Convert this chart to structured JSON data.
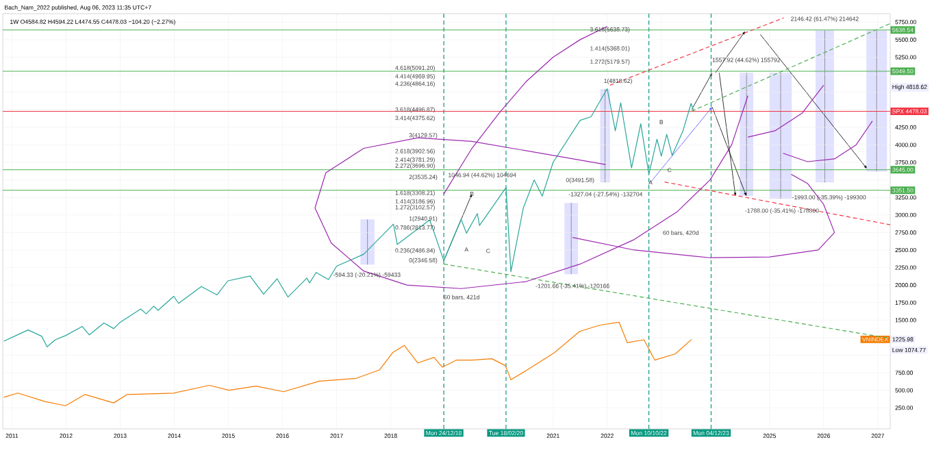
{
  "chart_data": {
    "type": "line",
    "title": "1W O4584.82 H4594.22 L4474.55 C4478.03 −104.20 (−2.27%)",
    "annotations": [
      "Bach_Nam_2022 published, Aug 06, 2023 11:35 UTC+7",
      "4.618(5091.20)",
      "4.414(4969.95)",
      "4.236(4864.16)",
      "3.618(4496.87)",
      "3.414(4375.62)",
      "3(4129.57)",
      "2.618(3902.56)",
      "2.414(3781.29)",
      "2.272(3696.90)",
      "2(3535.24)",
      "1.618(3308.21)",
      "1.414(3186.96)",
      "1.272(3102.57)",
      "1(2940.91)",
      "0.786(2813.77)",
      "0.236(2486.84)",
      "0(2346.58)",
      "3.618(5638.73)",
      "1.414(5368.01)",
      "1.272(5179.57)",
      "1(4818.62)",
      "0(3491.58)",
      "-594.33 (-20.21%) -59433",
      "1046.94 (44.62%) 104694",
      "-1327.04 (-27.54%) -132704",
      "-1201.66 (-35.41%) -120166",
      "1557.92 (44.62%) 155792",
      "2146.42 (61.47%) 214642",
      "-1788.00 (-35.41%) -178800",
      "-1993.00 (-35.39%) -199300",
      "60 bars, 421d",
      "60 bars, 420d",
      "A",
      {
        "text": "B",
        "x": 2019.5,
        "y": 3300
      },
      "C",
      {
        "text": "A",
        "x": 2022.8,
        "y": 3465
      },
      "B",
      "C",
      "High 4818.62",
      "Low 1074.77",
      "1225.98"
    ],
    "xlim": [
      2010.83,
      2027.23
    ],
    "ylim": [
      -50,
      5870
    ],
    "xticks": [
      2011,
      2012,
      2013,
      2014,
      2015,
      2016,
      2017,
      2018,
      {
        "value": 2019,
        "label": null
      },
      {
        "value": 2020,
        "label": null
      },
      2021,
      2022,
      {
        "value": 2023,
        "label": null
      },
      {
        "value": 2024,
        "label": null
      },
      2025,
      2026,
      2027
    ],
    "yticks": [
      {
        "value": 250,
        "label": "250.00"
      },
      {
        "value": 500,
        "label": "500.00"
      },
      {
        "value": 750,
        "label": "750.00"
      },
      {
        "value": 1000,
        "label": null
      },
      {
        "value": 1250,
        "label": null
      },
      {
        "value": 1500,
        "label": "1500.00"
      },
      {
        "value": 1750,
        "label": "1750.00"
      },
      {
        "value": 2000,
        "label": "2000.00"
      },
      {
        "value": 2250,
        "label": "2250.00"
      },
      {
        "value": 2500,
        "label": "2500.00"
      },
      {
        "value": 2750,
        "label": "2750.00"
      },
      {
        "value": 3000,
        "label": "3000.00"
      },
      {
        "value": 3250,
        "label": "3250.00"
      },
      {
        "value": 3500,
        "label": null
      },
      {
        "value": 3750,
        "label": "3750.00"
      },
      {
        "value": 4000,
        "label": "4000.00"
      },
      {
        "value": 4250,
        "label": "4250.00"
      },
      {
        "value": 4500,
        "label": null
      },
      {
        "value": 4750,
        "label": null
      },
      {
        "value": 5000,
        "label": null
      },
      {
        "value": 5250,
        "label": "5250.00"
      },
      {
        "value": 5500,
        "label": "5500.00"
      },
      {
        "value": 5750,
        "label": "5750.00"
      }
    ],
    "grid": true,
    "ref_lines": [
      {
        "axis": "x",
        "value": 2018.98,
        "label": "Mon 24/12/18",
        "color": "#089981",
        "line_style": "dashed"
      },
      {
        "axis": "x",
        "value": 2020.13,
        "label": "Tue 18/02/20",
        "color": "#089981",
        "line_style": "dashed"
      },
      {
        "axis": "x",
        "value": 2022.77,
        "label": "Mon 10/10/22",
        "color": "#089981",
        "line_style": "dashed"
      },
      {
        "axis": "x",
        "value": 2023.92,
        "label": "Mon 04/12/23",
        "color": "#089981",
        "line_style": "dashed"
      },
      {
        "axis": "y",
        "value": 5638.54,
        "label": "5638.54",
        "color": "#4caf50"
      },
      {
        "axis": "y",
        "value": 5049.5,
        "label": "5049.50",
        "color": "#4caf50"
      },
      {
        "axis": "y",
        "value": 3645.0,
        "label": "3645.00",
        "color": "#4caf50"
      },
      {
        "axis": "y",
        "value": 3351.5,
        "label": "3351.50",
        "color": "#4caf50"
      },
      {
        "axis": "y",
        "value": 4478.03,
        "label": "SPX 4478.03",
        "color": "#f23645"
      }
    ],
    "series": [
      {
        "color": "#26a69a",
        "x": [
          2010.85,
          2011.1,
          2011.3,
          2011.55,
          2011.65,
          2011.8,
          2011.99,
          2012.3,
          2012.43,
          2012.7,
          2012.88,
          2013.0,
          2013.38,
          2013.48,
          2013.62,
          2013.7,
          2013.99,
          2014.08,
          2014.5,
          2014.79,
          2014.99,
          2015.4,
          2015.65,
          2015.9,
          2016.1,
          2016.45,
          2016.5,
          2016.62,
          2016.85,
          2017.0,
          2017.5,
          2018.05,
          2018.12,
          2018.72,
          2018.98,
          2019.3,
          2019.4,
          2019.6,
          2019.64,
          2020.13,
          2020.22,
          2020.45,
          2020.65,
          2020.8,
          2021.0,
          2021.5,
          2021.7,
          2022.0,
          2022.15,
          2022.25,
          2022.45,
          2022.62,
          2022.77,
          2022.92,
          2023.0,
          2023.1,
          2023.2,
          2023.4,
          2023.55,
          2023.6
        ],
        "values": [
          1200,
          1290,
          1360,
          1270,
          1120,
          1220,
          1280,
          1410,
          1290,
          1460,
          1380,
          1470,
          1660,
          1590,
          1700,
          1640,
          1840,
          1740,
          1980,
          1860,
          2060,
          2130,
          1870,
          2090,
          1830,
          2100,
          2030,
          2180,
          2080,
          2270,
          2440,
          2870,
          2580,
          2930,
          2350,
          2940,
          2740,
          3020,
          2850,
          3390,
          2190,
          3100,
          3500,
          3270,
          3750,
          4350,
          4400,
          4800,
          4200,
          4600,
          3670,
          4300,
          3580,
          4080,
          3840,
          4150,
          3850,
          4200,
          4590,
          4478
        ]
      },
      {
        "name": "VNINDEX",
        "color": "#f57c00",
        "x": [
          2010.85,
          2011.11,
          2011.61,
          2011.99,
          2012.35,
          2012.88,
          2013.13,
          2013.99,
          2014.65,
          2015.01,
          2015.51,
          2016.02,
          2016.68,
          2017.36,
          2017.79,
          2018.04,
          2018.25,
          2018.5,
          2018.8,
          2018.95,
          2019.21,
          2019.51,
          2019.87,
          2020.12,
          2020.22,
          2020.52,
          2021.03,
          2021.49,
          2021.87,
          2022.22,
          2022.37,
          2022.68,
          2022.88,
          2023.26,
          2023.56
        ],
        "values": [
          400,
          460,
          340,
          280,
          440,
          320,
          440,
          460,
          570,
          500,
          560,
          480,
          630,
          670,
          790,
          1040,
          1140,
          890,
          970,
          830,
          930,
          930,
          950,
          850,
          650,
          790,
          1040,
          1340,
          1430,
          1470,
          1180,
          1220,
          930,
          1020,
          1226
        ]
      },
      {
        "type": "line",
        "color": "#4caf50",
        "line_style": "dashed",
        "x": [
          2018.98,
          2027.23
        ],
        "values": [
          2300,
          1240
        ]
      },
      {
        "type": "line",
        "color": "#4caf50",
        "line_style": "dashed",
        "x": [
          2023.56,
          2027.23
        ],
        "values": [
          4480,
          5730
        ]
      },
      {
        "type": "line",
        "color": "#f23645",
        "line_style": "dashed",
        "x": [
          2022.05,
          2025.26
        ],
        "values": [
          4850,
          5810
        ]
      },
      {
        "type": "line",
        "color": "#f23645",
        "line_style": "dashed",
        "x": [
          2023.06,
          2027.23
        ],
        "values": [
          3470,
          2860
        ]
      },
      {
        "type": "line",
        "color": "#9c27b0",
        "x": [
          2018.98,
          2019.5,
          2020.0,
          2020.5,
          2021.0,
          2021.5,
          2022.0
        ],
        "values": [
          3300,
          3950,
          4450,
          4900,
          5250,
          5500,
          5690
        ]
      },
      {
        "type": "line",
        "color": "#9c27b0",
        "x": [
          2021.97,
          2019.5,
          2018.5,
          2017.5,
          2016.8,
          2016.6,
          2016.9,
          2017.5,
          2018.3,
          2019.3,
          2020.5,
          2021.5,
          2022.5,
          2023.3,
          2023.9,
          2024.3,
          2024.6
        ],
        "values": [
          3720,
          4050,
          4100,
          3950,
          3600,
          3100,
          2600,
          2200,
          2000,
          1950,
          2050,
          2300,
          2650,
          3050,
          3500,
          4000,
          4700
        ]
      },
      {
        "type": "line",
        "color": "#9c27b0",
        "x": [
          2021.36,
          2022.5,
          2023.9,
          2025.0,
          2025.9,
          2026.2,
          2026.0,
          2025.7,
          2025.4
        ],
        "values": [
          2680,
          2500,
          2390,
          2400,
          2500,
          2750,
          3150,
          3450,
          3580
        ]
      },
      {
        "type": "line",
        "color": "#9c27b0",
        "x": [
          2024.6,
          2025.1,
          2025.6,
          2026.0
        ],
        "values": [
          4110,
          4200,
          4450,
          4850
        ]
      },
      {
        "type": "line",
        "color": "#9c27b0",
        "x": [
          2025.25,
          2025.7,
          2026.2,
          2026.6,
          2026.9
        ],
        "values": [
          3880,
          3760,
          3800,
          4000,
          4340
        ]
      }
    ]
  }
}
